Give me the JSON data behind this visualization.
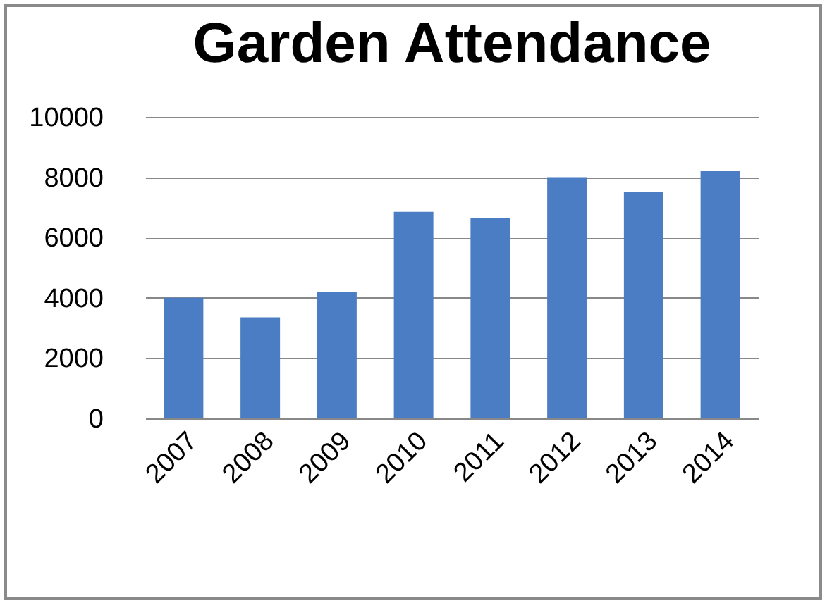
{
  "chart_data": {
    "type": "bar",
    "title": "Garden Attendance",
    "categories": [
      "2007",
      "2008",
      "2009",
      "2010",
      "2011",
      "2012",
      "2013",
      "2014"
    ],
    "values": [
      4000,
      3350,
      4200,
      6850,
      6650,
      8000,
      7500,
      8200
    ],
    "color": "#4a7dc4",
    "ylim": [
      0,
      10000
    ],
    "yticks": [
      0,
      2000,
      4000,
      6000,
      8000,
      10000
    ],
    "grid": "y"
  }
}
